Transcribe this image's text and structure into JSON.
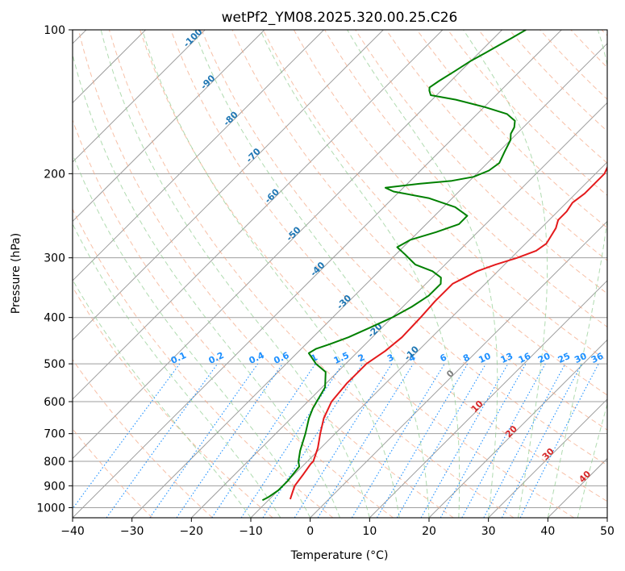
{
  "chart_data": {
    "type": "line",
    "title": "wetPf2_YM08.2025.320.00.25.C26",
    "xlabel": "Temperature (°C)",
    "ylabel": "Pressure (hPa)",
    "xlim": [
      -40,
      50
    ],
    "ylim": [
      1050,
      100
    ],
    "x_ticks": [
      "−40",
      "−30",
      "−20",
      "−10",
      "0",
      "10",
      "20",
      "30",
      "40",
      "50"
    ],
    "y_ticks": [
      "100",
      "200",
      "300",
      "400",
      "500",
      "600",
      "700",
      "800",
      "900",
      "1000"
    ],
    "skew_factor": 35,
    "colors": {
      "temperature": "#e41a1c",
      "dewpoint": "#008000",
      "isotherm": "#9e9e9e",
      "dry_adiabat": "#f4a582",
      "moist_adiabat": "#8fcc8f",
      "mixing_ratio": "#1e90ff",
      "ccl_label": "#1f77b4",
      "lfc_label": "#d62728",
      "zero_label": "#7f7f7f"
    },
    "series": [
      {
        "name": "Temperature",
        "points": [
          [
            -6.5,
            960
          ],
          [
            -7.5,
            920
          ],
          [
            -8,
            900
          ],
          [
            -8.5,
            850
          ],
          [
            -9,
            810
          ],
          [
            -9,
            800
          ],
          [
            -10.5,
            750
          ],
          [
            -12.5,
            700
          ],
          [
            -14.5,
            650
          ],
          [
            -16,
            600
          ],
          [
            -16.5,
            550
          ],
          [
            -16.5,
            520
          ],
          [
            -16.5,
            500
          ],
          [
            -15.5,
            470
          ],
          [
            -15,
            440
          ],
          [
            -15.2,
            400
          ],
          [
            -15.5,
            370
          ],
          [
            -15.5,
            340
          ],
          [
            -14.5,
            330
          ],
          [
            -13.5,
            320
          ],
          [
            -11.5,
            310
          ],
          [
            -9,
            300
          ],
          [
            -7,
            290
          ],
          [
            -6.5,
            280
          ],
          [
            -7,
            270
          ],
          [
            -7.5,
            260
          ],
          [
            -8.5,
            250
          ],
          [
            -8.5,
            240
          ],
          [
            -9,
            230
          ],
          [
            -8.5,
            220
          ],
          [
            -8.5,
            210
          ],
          [
            -8.5,
            200
          ],
          [
            -9.5,
            190
          ],
          [
            -10.5,
            180
          ],
          [
            -11.5,
            170
          ],
          [
            -13,
            160
          ],
          [
            -13.5,
            150
          ],
          [
            -14.5,
            140
          ],
          [
            -17,
            130
          ],
          [
            -18,
            120
          ],
          [
            -18.5,
            110
          ],
          [
            -18.5,
            100
          ]
        ]
      },
      {
        "name": "Dewpoint",
        "points": [
          [
            -11,
            965
          ],
          [
            -10.5,
            950
          ],
          [
            -10,
            920
          ],
          [
            -10,
            880
          ],
          [
            -10.5,
            820
          ],
          [
            -11.5,
            800
          ],
          [
            -13,
            760
          ],
          [
            -15,
            700
          ],
          [
            -17,
            650
          ],
          [
            -18,
            620
          ],
          [
            -18.5,
            600
          ],
          [
            -19.5,
            560
          ],
          [
            -22,
            520
          ],
          [
            -25,
            500
          ],
          [
            -28,
            475
          ],
          [
            -27.5,
            465
          ],
          [
            -26,
            455
          ],
          [
            -24,
            440
          ],
          [
            -22,
            420
          ],
          [
            -20,
            400
          ],
          [
            -18.5,
            380
          ],
          [
            -17.5,
            360
          ],
          [
            -17.5,
            340
          ],
          [
            -18.5,
            330
          ],
          [
            -21,
            320
          ],
          [
            -25,
            310
          ],
          [
            -28.5,
            295
          ],
          [
            -31,
            285
          ],
          [
            -30,
            275
          ],
          [
            -27,
            265
          ],
          [
            -24.5,
            255
          ],
          [
            -24.5,
            245
          ],
          [
            -28,
            235
          ],
          [
            -34,
            225
          ],
          [
            -41,
            218
          ],
          [
            -43,
            214
          ],
          [
            -38,
            210
          ],
          [
            -33,
            207
          ],
          [
            -30,
            203
          ],
          [
            -28.5,
            197
          ],
          [
            -28,
            190
          ],
          [
            -29,
            180
          ],
          [
            -30,
            170
          ],
          [
            -31,
            165
          ],
          [
            -31.5,
            160
          ],
          [
            -32.5,
            155
          ],
          [
            -35,
            150
          ],
          [
            -40,
            145
          ],
          [
            -46,
            140
          ],
          [
            -51,
            137
          ],
          [
            -52,
            134
          ],
          [
            -52.5,
            132
          ],
          [
            -52,
            128
          ],
          [
            -51,
            122
          ],
          [
            -50,
            116
          ],
          [
            -49,
            112
          ],
          [
            -48,
            108
          ],
          [
            -47,
            104
          ],
          [
            -46,
            100
          ]
        ]
      }
    ],
    "isotherm_temps": [
      -140,
      -130,
      -120,
      -110,
      -100,
      -90,
      -80,
      -70,
      -60,
      -50,
      -40,
      -30,
      -20,
      -10,
      0,
      10,
      20,
      30,
      40,
      50
    ],
    "dry_adiabat_thetas_c": [
      -30,
      -20,
      -10,
      0,
      10,
      20,
      30,
      40,
      50,
      60,
      70,
      80,
      90,
      100,
      110,
      120,
      130,
      140,
      150,
      160,
      170,
      180,
      190,
      200,
      210,
      220,
      230,
      240,
      250
    ],
    "moist_adiabat_starts_c": [
      -10,
      -5,
      0,
      5,
      10,
      15,
      20,
      25,
      30,
      35,
      40,
      45
    ],
    "mixing_ratios_gkg": [
      0.1,
      0.2,
      0.4,
      0.6,
      1,
      1.5,
      2,
      3,
      4,
      6,
      8,
      10,
      13,
      16,
      20,
      25,
      30,
      36
    ],
    "mixing_ratio_labels": [
      "0.1",
      "0.2",
      "0.4",
      "0.6",
      "1",
      "1.5",
      "2",
      "3",
      "4",
      "6",
      "8",
      "10",
      "13",
      "16",
      "20",
      "25",
      "30",
      "36"
    ],
    "ccl_labels": [
      "-100",
      "-90",
      "-80",
      "-70",
      "-60",
      "-50",
      "-40",
      "-30",
      "-20",
      "-10"
    ],
    "ccl_label_pressures": [
      105,
      130,
      155,
      185,
      225,
      270,
      320,
      375,
      430,
      480
    ],
    "lfc_labels": [
      "10",
      "20",
      "30",
      "40"
    ],
    "lfc_label_pressures": [
      620,
      700,
      780,
      870
    ],
    "zero_label": "0",
    "zero_label_pressure": 530
  }
}
